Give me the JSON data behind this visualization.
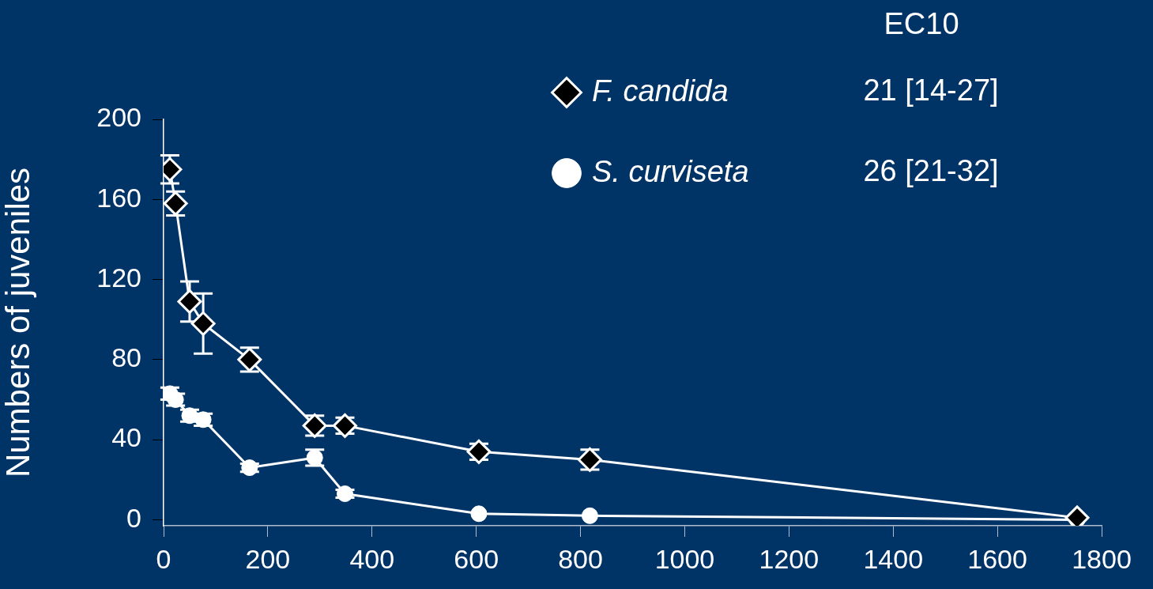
{
  "chart_data": {
    "type": "line",
    "ylabel": "Numbers of juveniles",
    "x": [
      12,
      23,
      50,
      76,
      165,
      290,
      348,
      605,
      818,
      1753
    ],
    "xlim": [
      0,
      1800
    ],
    "xticks": [
      0,
      200,
      400,
      600,
      800,
      1000,
      1200,
      1400,
      1600,
      1800
    ],
    "ylim": [
      -3,
      200
    ],
    "yticks": [
      0,
      40,
      80,
      120,
      160,
      200
    ],
    "grid": false,
    "legend": "top right",
    "annotations": [
      "EC10",
      "21 [14-27]",
      "26 [21-32]"
    ],
    "series": [
      {
        "name": "F. candida",
        "color": "#ffffff",
        "marker": "diamond",
        "values": [
          175,
          158,
          109,
          98,
          80,
          47,
          47,
          34,
          30,
          1
        ],
        "errors": [
          7,
          6,
          10,
          15,
          6,
          5,
          4,
          4,
          5,
          null
        ]
      },
      {
        "name": "S. curviseta",
        "color": "#ffffff",
        "marker": "circle",
        "values": [
          63,
          60,
          52,
          50,
          26,
          31,
          13,
          3,
          2,
          0
        ],
        "errors": [
          3,
          3,
          3,
          3,
          2,
          4,
          2,
          null,
          null,
          null
        ]
      }
    ]
  }
}
